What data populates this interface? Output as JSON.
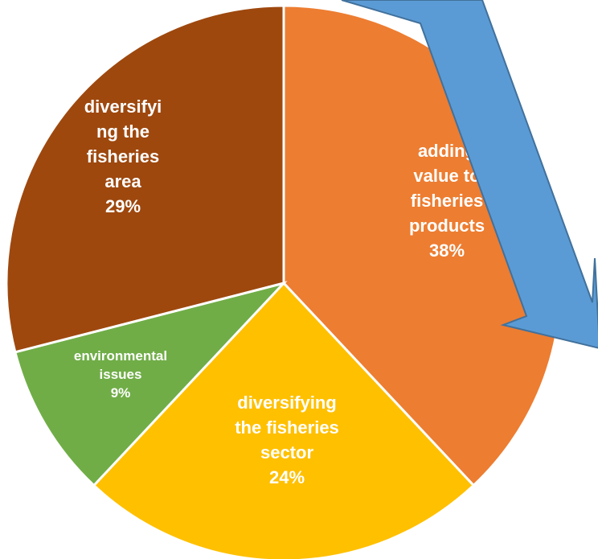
{
  "chart_data": {
    "type": "pie",
    "title": "",
    "start_angle_deg": 0,
    "direction": "clockwise",
    "slices": [
      {
        "label_lines": [
          "adding",
          "value to",
          "fisheries",
          "products"
        ],
        "percent_label": "38%",
        "value": 38,
        "color": "#ED7D31"
      },
      {
        "label_lines": [
          "diversifying",
          "the fisheries",
          "sector"
        ],
        "percent_label": "24%",
        "value": 24,
        "color": "#FFC000"
      },
      {
        "label_lines": [
          "environmental",
          "issues"
        ],
        "percent_label": "9%",
        "value": 9,
        "color": "#70AD47"
      },
      {
        "label_lines": [
          "diversifyi",
          "ng the",
          "fisheries",
          "area"
        ],
        "percent_label": "29%",
        "value": 29,
        "color": "#9E480E"
      }
    ],
    "label_color": "#FFFFFF",
    "border_color": "#FFFFFF"
  },
  "arrow": {
    "fill": "#5B9BD5",
    "stroke": "#41719C",
    "direction": "down-right"
  }
}
